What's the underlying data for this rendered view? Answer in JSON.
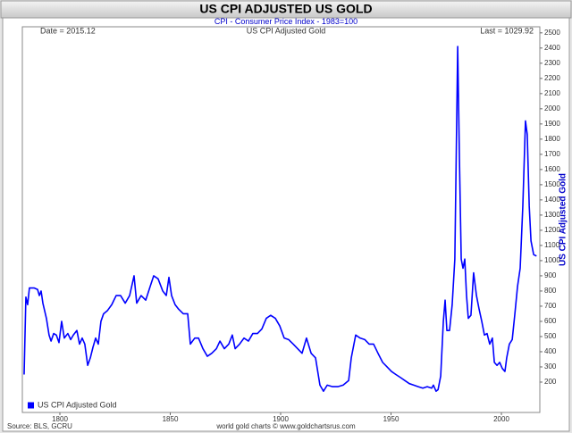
{
  "chart_data": {
    "type": "line",
    "title": "US CPI ADJUSTED US GOLD",
    "subtitle": "CPI - Consumer Price Index - 1983=100",
    "date_label": "Date = 2015.12",
    "header": "US CPI Adjusted Gold",
    "last_label": "Last = 1029.92",
    "y_label": "US CPI Adjusted Gold",
    "source": "Source: BLS, GCRU",
    "credit": "world gold charts © www.goldchartsrus.com",
    "y_axis_side": "right",
    "legend": "lower left",
    "grid": false,
    "xlim": [
      1783,
      2017.4
    ],
    "ylim": [
      0,
      2540
    ],
    "xticks": [
      1800,
      1850,
      1900,
      1950,
      2000
    ],
    "yticks": [
      200,
      300,
      400,
      500,
      600,
      700,
      800,
      900,
      1000,
      1100,
      1200,
      1300,
      1400,
      1500,
      1600,
      1700,
      1800,
      1900,
      2000,
      2100,
      2200,
      2300,
      2400,
      2500
    ],
    "x": [
      1783.8,
      1784.6,
      1785.4,
      1786.2,
      1788.3,
      1789.9,
      1790.7,
      1791.5,
      1792.3,
      1793.9,
      1795.1,
      1796.0,
      1797.2,
      1798.4,
      1799.6,
      1800.8,
      1802.0,
      1803.6,
      1804.9,
      1806.1,
      1807.7,
      1808.9,
      1810.1,
      1811.3,
      1812.6,
      1813.8,
      1815.0,
      1816.2,
      1817.4,
      1818.6,
      1819.8,
      1821.5,
      1823.5,
      1825.5,
      1827.5,
      1829.6,
      1831.6,
      1833.6,
      1834.8,
      1836.8,
      1838.9,
      1840.9,
      1842.5,
      1844.5,
      1846.6,
      1848.2,
      1849.4,
      1850.6,
      1852.2,
      1853.8,
      1855.9,
      1857.9,
      1859.1,
      1861.1,
      1862.8,
      1864.8,
      1866.8,
      1868.8,
      1870.9,
      1872.5,
      1874.5,
      1876.5,
      1878.1,
      1879.4,
      1881.4,
      1883.4,
      1885.4,
      1887.4,
      1889.5,
      1891.5,
      1893.5,
      1895.5,
      1897.6,
      1899.6,
      1901.6,
      1903.6,
      1905.7,
      1907.7,
      1909.7,
      1911.7,
      1913.8,
      1915.8,
      1917.8,
      1919.4,
      1921.1,
      1923.5,
      1925.9,
      1928.3,
      1930.8,
      1932.0,
      1934.0,
      1936.0,
      1938.1,
      1940.1,
      1942.1,
      1944.1,
      1946.2,
      1948.2,
      1950.2,
      1952.2,
      1954.3,
      1956.3,
      1958.3,
      1960.3,
      1962.3,
      1964.4,
      1966.4,
      1968.4,
      1969.2,
      1970.4,
      1971.3,
      1972.5,
      1973.7,
      1974.5,
      1975.3,
      1976.5,
      1977.7,
      1978.9,
      1980.2,
      1981.0,
      1981.8,
      1982.6,
      1983.4,
      1984.2,
      1985.0,
      1986.2,
      1987.4,
      1988.7,
      1989.9,
      1991.1,
      1992.3,
      1993.5,
      1994.7,
      1995.9,
      1996.8,
      1998.0,
      1999.2,
      2000.4,
      2001.6,
      2002.4,
      2003.6,
      2004.9,
      2006.1,
      2007.3,
      2008.5,
      2009.7,
      2010.9,
      2011.7,
      2012.6,
      2013.4,
      2014.6,
      2015.9
    ],
    "series": [
      {
        "name": "US CPI Adjusted Gold",
        "color": "#0000ff",
        "values": [
          250,
          760,
          710,
          820,
          820,
          810,
          770,
          800,
          720,
          620,
          510,
          470,
          520,
          510,
          460,
          600,
          490,
          520,
          480,
          510,
          540,
          450,
          490,
          450,
          310,
          360,
          430,
          490,
          450,
          600,
          650,
          670,
          710,
          770,
          770,
          720,
          770,
          900,
          720,
          770,
          740,
          830,
          900,
          880,
          800,
          770,
          890,
          770,
          710,
          680,
          650,
          650,
          450,
          490,
          490,
          420,
          370,
          390,
          420,
          470,
          420,
          450,
          510,
          420,
          450,
          490,
          470,
          520,
          520,
          550,
          620,
          640,
          620,
          570,
          490,
          480,
          450,
          420,
          390,
          490,
          390,
          360,
          180,
          140,
          180,
          170,
          170,
          180,
          210,
          360,
          510,
          490,
          480,
          450,
          450,
          390,
          330,
          300,
          270,
          250,
          230,
          210,
          190,
          180,
          170,
          160,
          170,
          160,
          180,
          140,
          150,
          240,
          600,
          740,
          540,
          540,
          710,
          1010,
          2410,
          1660,
          1010,
          950,
          1010,
          770,
          620,
          640,
          920,
          770,
          680,
          600,
          510,
          520,
          450,
          490,
          330,
          310,
          330,
          290,
          270,
          360,
          450,
          480,
          650,
          830,
          950,
          1360,
          1920,
          1830,
          1360,
          1130,
          1040,
          1029.92
        ]
      }
    ]
  }
}
